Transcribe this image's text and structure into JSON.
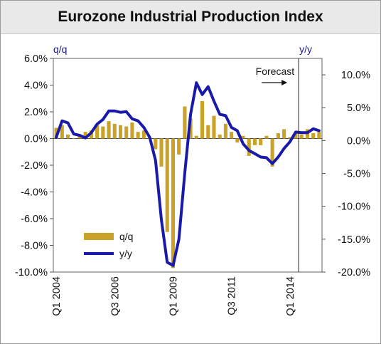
{
  "chart_data": {
    "type": "bar",
    "title": "Eurozone Industrial Production Index",
    "left_axis_label": "q/q",
    "right_axis_label": "y/y",
    "left_ylim": [
      -10,
      6
    ],
    "right_ylim": [
      -20,
      12.5
    ],
    "left_ticks": [
      "6.0%",
      "4.0%",
      "2.0%",
      "0.0%",
      "-2.0%",
      "-4.0%",
      "-6.0%",
      "-8.0%",
      "-10.0%"
    ],
    "right_ticks": [
      "10.0%",
      "5.0%",
      "0.0%",
      "-5.0%",
      "-10.0%",
      "-15.0%",
      "-20.0%"
    ],
    "x_tick_labels": [
      {
        "label": "Q1 2004",
        "index": 0
      },
      {
        "label": "Q3 2006",
        "index": 10
      },
      {
        "label": "Q1 2009",
        "index": 20
      },
      {
        "label": "Q3 2011",
        "index": 30
      },
      {
        "label": "Q1 2014",
        "index": 40
      }
    ],
    "annotation": "Forecast",
    "forecast_start_index": 42,
    "legend_position": "bottom-left",
    "grid": false,
    "series": [
      {
        "name": "q/q",
        "type": "bar",
        "color": "#c9a227",
        "values": [
          0.8,
          1.0,
          0.3,
          0.0,
          0.2,
          0.5,
          0.6,
          1.0,
          0.9,
          1.3,
          1.1,
          1.0,
          0.9,
          1.2,
          0.5,
          0.6,
          0.1,
          -0.8,
          -2.1,
          -7.0,
          -9.7,
          -1.2,
          2.4,
          1.5,
          0.2,
          2.8,
          1.0,
          1.7,
          0.3,
          1.1,
          0.5,
          -0.3,
          0.2,
          -1.3,
          -0.5,
          -0.5,
          0.2,
          -2.1,
          0.4,
          0.7,
          0.1,
          0.5,
          0.3,
          0.7,
          0.4,
          0.5
        ]
      },
      {
        "name": "y/y",
        "type": "line",
        "color": "#1a1aa8",
        "values": [
          0.5,
          3.0,
          2.7,
          1.0,
          0.8,
          0.4,
          1.2,
          2.5,
          3.2,
          4.5,
          4.5,
          4.3,
          4.4,
          3.3,
          3.0,
          2.0,
          0.5,
          -3.0,
          -12.0,
          -18.5,
          -19.0,
          -15.0,
          -5.0,
          4.0,
          8.8,
          7.0,
          8.2,
          6.0,
          4.0,
          3.8,
          2.0,
          1.5,
          -0.5,
          -1.5,
          -2.0,
          -2.5,
          -2.6,
          -3.5,
          -2.5,
          -1.2,
          -0.2,
          1.3,
          1.2,
          1.2,
          1.8,
          1.5
        ]
      }
    ]
  }
}
